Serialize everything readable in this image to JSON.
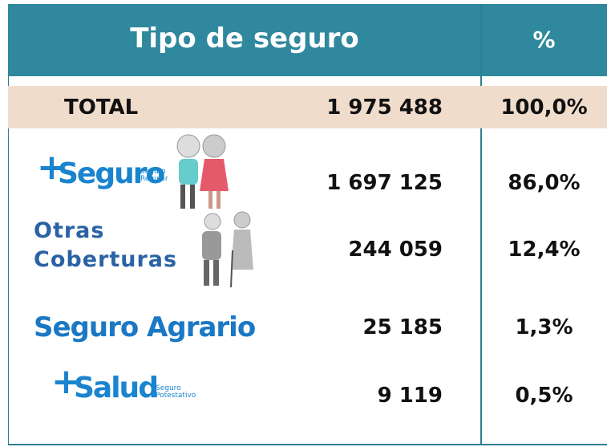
{
  "header": {
    "title": "Tipo de seguro",
    "percent": "%"
  },
  "total": {
    "label": "TOTAL",
    "count": "1 975 488",
    "percent": "100,0%"
  },
  "rows": [
    {
      "name": "Seguro",
      "subtitle": "Seguro Regular",
      "count": "1 697 125",
      "percent": "86,0%"
    },
    {
      "name": "Otras Coberturas",
      "count": "244 059",
      "percent": "12,4%"
    },
    {
      "name": "Seguro Agrario",
      "count": "25 185",
      "percent": "1,3%"
    },
    {
      "name": "Salud",
      "subtitle": "Seguro Potestativo",
      "count": "9 119",
      "percent": "0,5%"
    }
  ]
}
